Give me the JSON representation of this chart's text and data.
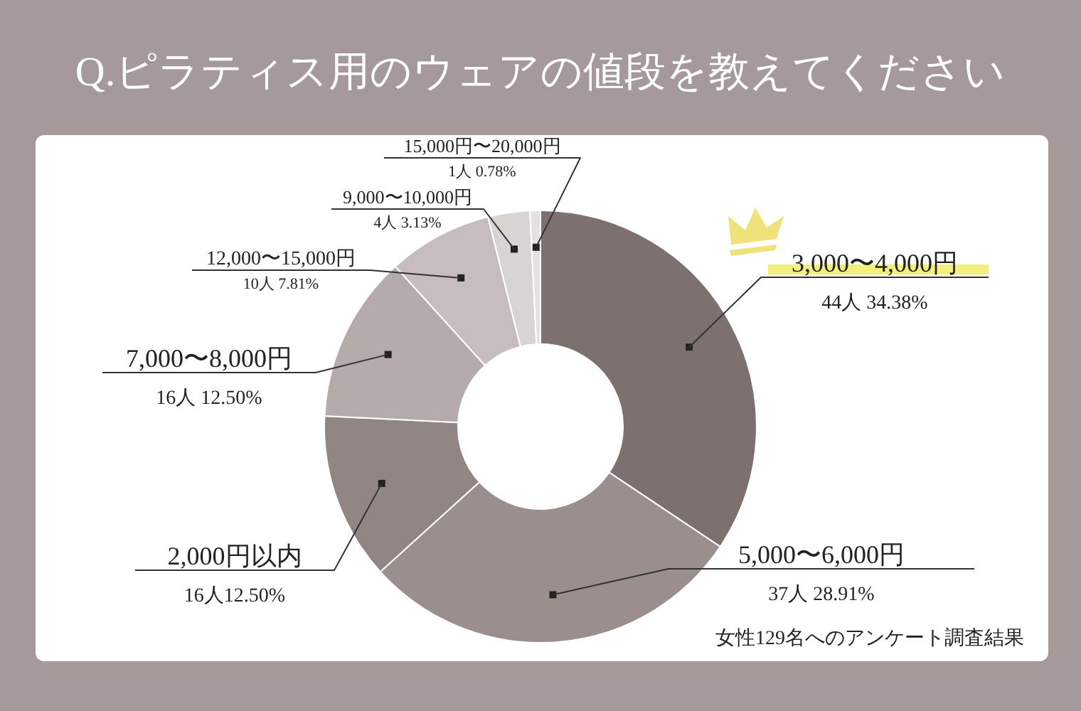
{
  "chart_data": {
    "type": "donut",
    "title": "Q.ピラティス用のウェアの値段を教えてください",
    "categories": [
      "3,000〜4,000円",
      "5,000〜6,000円",
      "2,000円以内",
      "7,000〜8,000円",
      "12,000〜15,000円",
      "9,000〜10,000円",
      "15,000円〜20,000円"
    ],
    "values": [
      44,
      37,
      16,
      16,
      10,
      4,
      1
    ],
    "value_labels": [
      "44人 34.38%",
      "37人 28.91%",
      "16人12.50%",
      "16人 12.50%",
      "10人 7.81%",
      "4人 3.13%",
      "1人 0.78%"
    ],
    "colors": [
      "#7d7170",
      "#9b8f8e",
      "#928685",
      "#b5abaa",
      "#c6bdbc",
      "#d9d3d2",
      "#e6e1e0"
    ],
    "annotations": [
      "女性129名へのアンケート調査結果"
    ]
  }
}
